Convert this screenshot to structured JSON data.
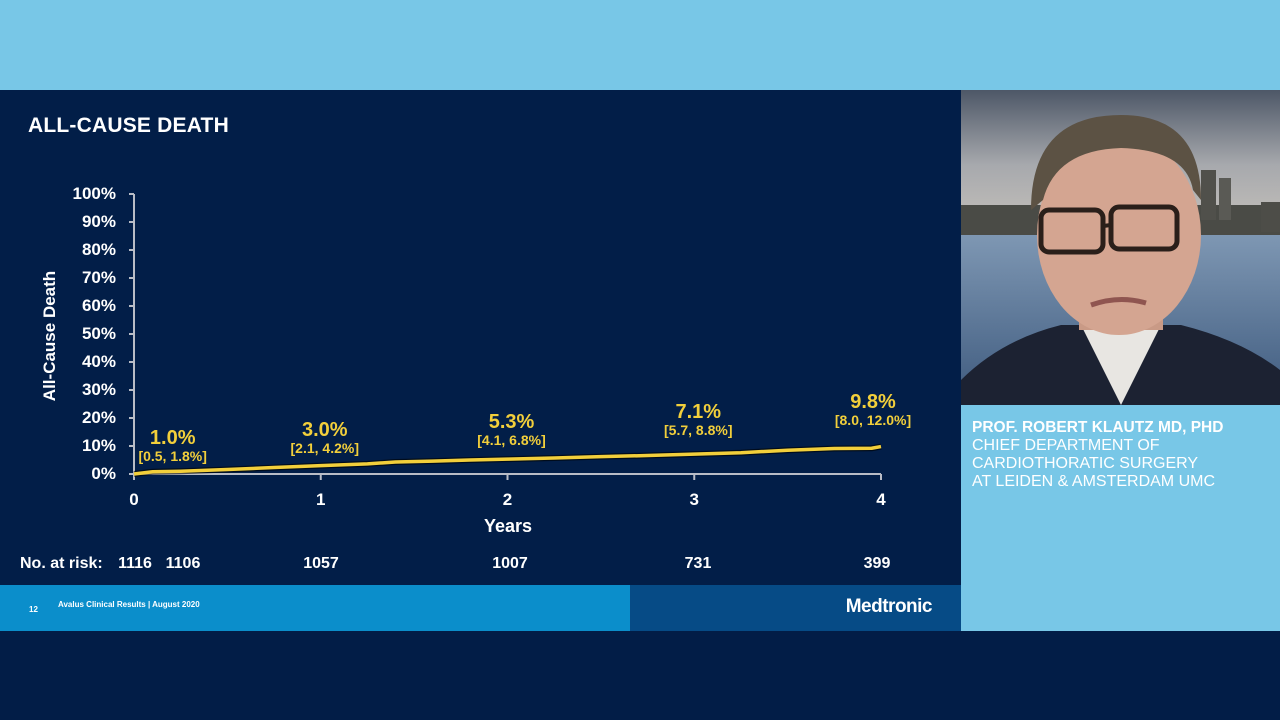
{
  "slide": {
    "title": "ALL-CAUSE DEATH",
    "footer": {
      "page_number": "12",
      "text": "Avalus Clinical Results | August 2020",
      "brand": "Medtronic"
    },
    "risk_table": {
      "label": "No. at risk:",
      "values": [
        "1116",
        "1106",
        "1057",
        "1007",
        "731",
        "399"
      ]
    }
  },
  "speaker": {
    "name": "PROF. ROBERT KLAUTZ MD, PHD",
    "title_lines": [
      "CHIEF DEPARTMENT OF",
      "CARDIOTHORATIC SURGERY",
      "AT LEIDEN & AMSTERDAM UMC"
    ]
  },
  "colors": {
    "background_top": "#78c7e7",
    "slide_bg": "#021e48",
    "curve": "#f2cf3b",
    "footer_light": "#0b8ecb",
    "footer_dark": "#064b86"
  },
  "chart_data": {
    "type": "line",
    "title": "ALL-CAUSE DEATH",
    "xlabel": "Years",
    "ylabel": "All-Cause Death",
    "xlim": [
      0,
      4
    ],
    "ylim": [
      0,
      100
    ],
    "x_ticks": [
      "0",
      "1",
      "2",
      "3",
      "4"
    ],
    "y_ticks": [
      "0%",
      "10%",
      "20%",
      "30%",
      "40%",
      "50%",
      "60%",
      "70%",
      "80%",
      "90%",
      "100%"
    ],
    "grid": false,
    "series": [
      {
        "name": "All-Cause Death (Kaplan-Meier)",
        "x": [
          0,
          0.1,
          0.25,
          0.5,
          0.75,
          1.0,
          1.25,
          1.4,
          1.6,
          1.8,
          2.0,
          2.25,
          2.5,
          2.75,
          3.0,
          3.25,
          3.5,
          3.75,
          3.95,
          4.0
        ],
        "values": [
          0.0,
          0.8,
          1.0,
          1.6,
          2.3,
          3.0,
          3.6,
          4.3,
          4.6,
          5.0,
          5.3,
          5.7,
          6.2,
          6.6,
          7.1,
          7.6,
          8.5,
          9.1,
          9.2,
          9.8
        ]
      }
    ],
    "annotations": [
      {
        "x": 0.25,
        "value": "1.0%",
        "ci": "[0.5, 1.8%]"
      },
      {
        "x": 1,
        "value": "3.0%",
        "ci": "[2.1, 4.2%]"
      },
      {
        "x": 2,
        "value": "5.3%",
        "ci": "[4.1, 6.8%]"
      },
      {
        "x": 3,
        "value": "7.1%",
        "ci": "[5.7, 8.8%]"
      },
      {
        "x": 4,
        "value": "9.8%",
        "ci": "[8.0, 12.0%]"
      }
    ],
    "numbers_at_risk": {
      "label": "No. at risk:",
      "x": [
        0,
        0.25,
        1,
        2,
        3,
        4
      ],
      "values": [
        1116,
        1106,
        1057,
        1007,
        731,
        399
      ]
    }
  }
}
